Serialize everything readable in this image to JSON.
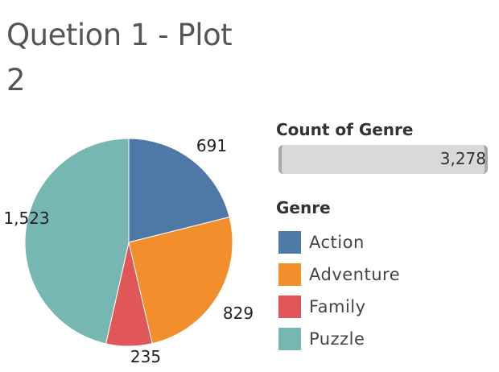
{
  "title": "Quetion 1 - Plot 2",
  "chart_data": {
    "type": "pie",
    "categories": [
      "Action",
      "Adventure",
      "Family",
      "Puzzle"
    ],
    "values": [
      691,
      829,
      235,
      1523
    ],
    "value_labels": [
      "691",
      "829",
      "235",
      "1,523"
    ],
    "colors": [
      "#4e79a7",
      "#f28e2b",
      "#e15759",
      "#76b7b2"
    ],
    "legend_title": "Genre",
    "legend_position": "right"
  },
  "count_card": {
    "title": "Count of Genre",
    "value": "3,278"
  }
}
